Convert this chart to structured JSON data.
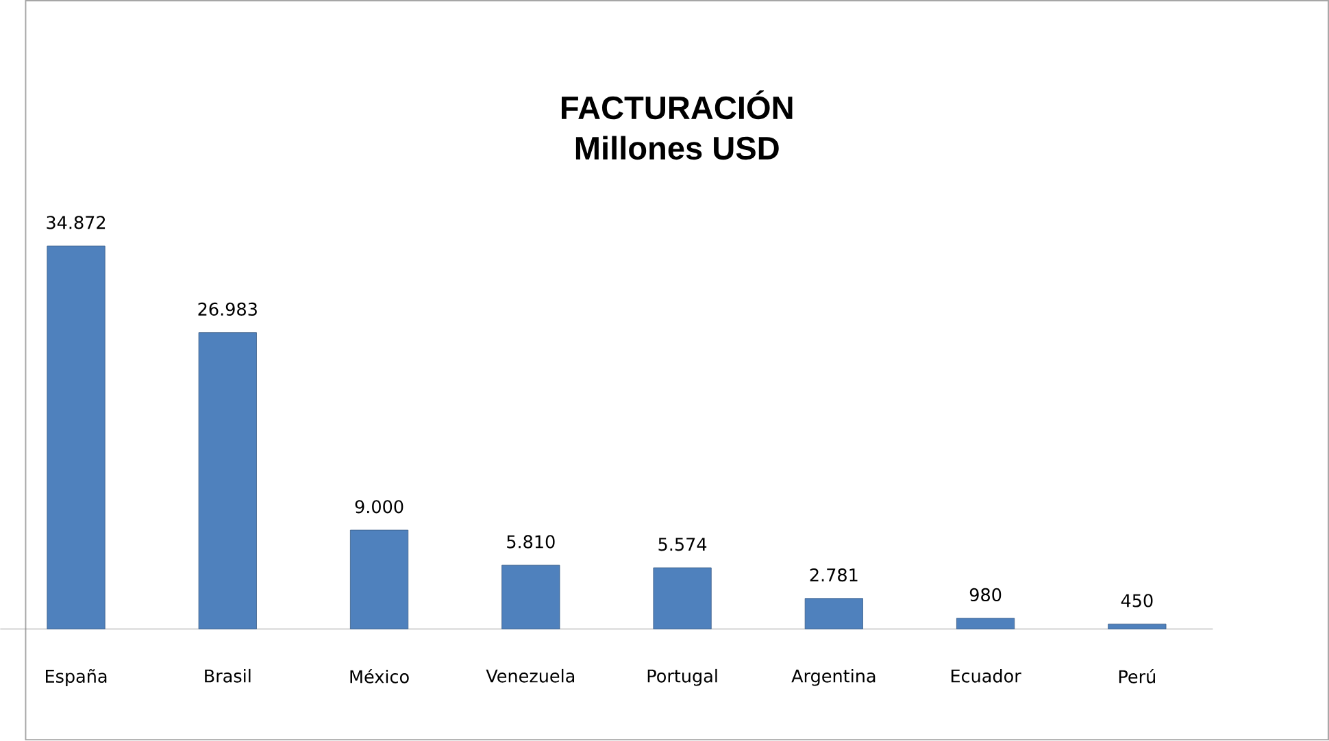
{
  "chart_data": {
    "type": "bar",
    "title": "FACTURACIÓN",
    "subtitle": "Millones USD",
    "categories": [
      "España",
      "Brasil",
      "México",
      "Venezuela",
      "Portugal",
      "Argentina",
      "Ecuador",
      "Perú"
    ],
    "values": [
      34872,
      26983,
      9000,
      5810,
      5574,
      2781,
      980,
      450
    ],
    "value_labels": [
      "34.872",
      "26.983",
      "9.000",
      "5.810",
      "5.574",
      "2.781",
      "980",
      "450"
    ],
    "color": "#4f81bd"
  }
}
